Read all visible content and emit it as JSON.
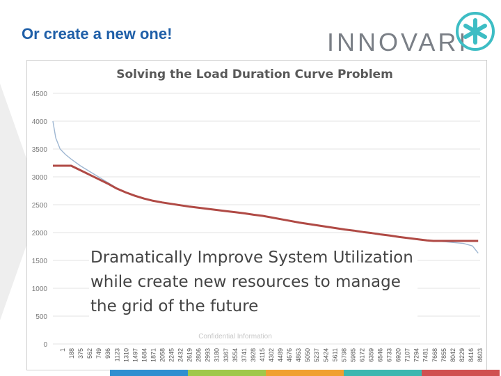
{
  "slide": {
    "title": "Or create a new one!",
    "logo_text": "INNOVARI",
    "callout": "Dramatically Improve System Utilization while create new resources to manage the grid of the future"
  },
  "colors": {
    "title": "#1f5fa8",
    "load_curve": "#9fb7d2",
    "managed_curve": "#b04a45",
    "logo_mark": "#3dbdc4",
    "bottom_bar": [
      "#2f8fd0",
      "#9fc84a",
      "#f0a030",
      "#3db7b0",
      "#d05050"
    ]
  },
  "chart_data": {
    "type": "line",
    "title": "Solving the Load Duration Curve Problem",
    "xlabel": "",
    "ylabel": "",
    "ylim": [
      0,
      4500
    ],
    "yticks": [
      0,
      500,
      1000,
      1500,
      2000,
      2500,
      3000,
      3500,
      4000,
      4500
    ],
    "x_tick_labels": [
      "1",
      "188",
      "375",
      "562",
      "749",
      "936",
      "1123",
      "1310",
      "1497",
      "1684",
      "1871",
      "2058",
      "2245",
      "2432",
      "2619",
      "2806",
      "2993",
      "3180",
      "3367",
      "3554",
      "3741",
      "3928",
      "4115",
      "4302",
      "4489",
      "4676",
      "4863",
      "5050",
      "5237",
      "5424",
      "5611",
      "5798",
      "5985",
      "6172",
      "6359",
      "6546",
      "6733",
      "6920",
      "7107",
      "7294",
      "7481",
      "7668",
      "7855",
      "8042",
      "8229",
      "8416",
      "8603"
    ],
    "xlim": [
      1,
      8760
    ],
    "legend": "none",
    "grid": true,
    "series": [
      {
        "color": "#9fb7d2",
        "points": [
          [
            1,
            4000
          ],
          [
            60,
            3700
          ],
          [
            150,
            3500
          ],
          [
            260,
            3400
          ],
          [
            375,
            3320
          ],
          [
            562,
            3200
          ],
          [
            749,
            3100
          ],
          [
            936,
            3000
          ],
          [
            1123,
            2900
          ],
          [
            1310,
            2800
          ],
          [
            1497,
            2720
          ],
          [
            1684,
            2660
          ],
          [
            1871,
            2610
          ],
          [
            2058,
            2570
          ],
          [
            2245,
            2540
          ],
          [
            2432,
            2515
          ],
          [
            2619,
            2490
          ],
          [
            2806,
            2465
          ],
          [
            2993,
            2445
          ],
          [
            3180,
            2425
          ],
          [
            3367,
            2405
          ],
          [
            3554,
            2385
          ],
          [
            3741,
            2365
          ],
          [
            3928,
            2345
          ],
          [
            4115,
            2320
          ],
          [
            4302,
            2300
          ],
          [
            4489,
            2270
          ],
          [
            4676,
            2240
          ],
          [
            4863,
            2210
          ],
          [
            5050,
            2180
          ],
          [
            5237,
            2155
          ],
          [
            5424,
            2130
          ],
          [
            5611,
            2105
          ],
          [
            5798,
            2080
          ],
          [
            5985,
            2055
          ],
          [
            6172,
            2035
          ],
          [
            6359,
            2010
          ],
          [
            6546,
            1990
          ],
          [
            6733,
            1965
          ],
          [
            6920,
            1945
          ],
          [
            7107,
            1920
          ],
          [
            7294,
            1900
          ],
          [
            7481,
            1880
          ],
          [
            7668,
            1860
          ],
          [
            7855,
            1845
          ],
          [
            8042,
            1835
          ],
          [
            8229,
            1820
          ],
          [
            8416,
            1805
          ],
          [
            8603,
            1760
          ],
          [
            8720,
            1630
          ]
        ]
      },
      {
        "color": "#b04a45",
        "points": [
          [
            1,
            3200
          ],
          [
            375,
            3200
          ],
          [
            562,
            3120
          ],
          [
            749,
            3040
          ],
          [
            936,
            2960
          ],
          [
            1123,
            2880
          ],
          [
            1310,
            2790
          ],
          [
            1497,
            2720
          ],
          [
            1684,
            2660
          ],
          [
            1871,
            2610
          ],
          [
            2058,
            2570
          ],
          [
            2245,
            2540
          ],
          [
            2432,
            2515
          ],
          [
            2619,
            2490
          ],
          [
            2806,
            2465
          ],
          [
            2993,
            2445
          ],
          [
            3180,
            2425
          ],
          [
            3367,
            2405
          ],
          [
            3554,
            2385
          ],
          [
            3741,
            2365
          ],
          [
            3928,
            2345
          ],
          [
            4115,
            2320
          ],
          [
            4302,
            2300
          ],
          [
            4489,
            2270
          ],
          [
            4676,
            2240
          ],
          [
            4863,
            2210
          ],
          [
            5050,
            2180
          ],
          [
            5237,
            2155
          ],
          [
            5424,
            2130
          ],
          [
            5611,
            2105
          ],
          [
            5798,
            2080
          ],
          [
            5985,
            2055
          ],
          [
            6172,
            2035
          ],
          [
            6359,
            2010
          ],
          [
            6546,
            1990
          ],
          [
            6733,
            1965
          ],
          [
            6920,
            1945
          ],
          [
            7107,
            1920
          ],
          [
            7294,
            1900
          ],
          [
            7481,
            1880
          ],
          [
            7668,
            1860
          ],
          [
            7800,
            1850
          ],
          [
            8720,
            1850
          ]
        ]
      }
    ],
    "annotation": "Confidential Information"
  }
}
